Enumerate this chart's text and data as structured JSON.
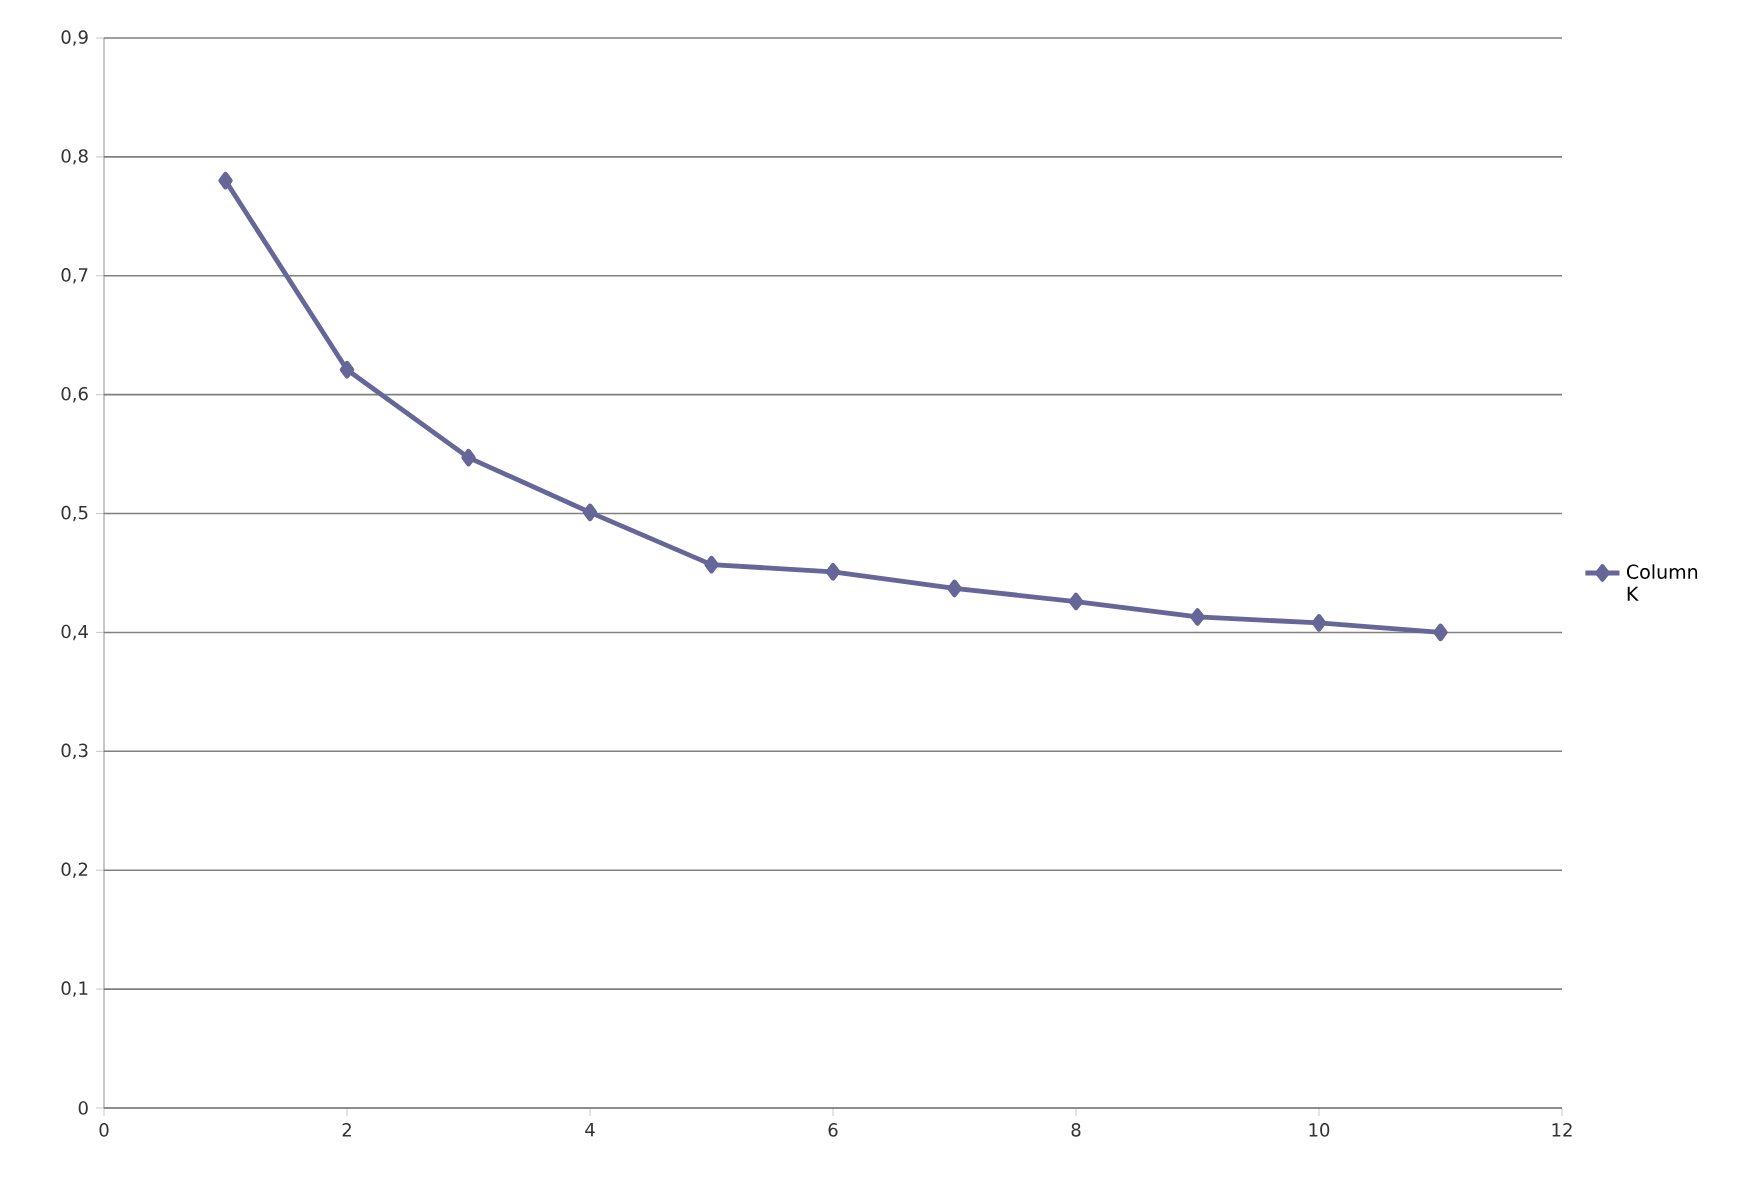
{
  "chart_data": {
    "type": "line",
    "x": [
      1,
      2,
      3,
      4,
      5,
      6,
      7,
      8,
      9,
      10,
      11
    ],
    "series": [
      {
        "name": "Column K",
        "color": "#666699",
        "values": [
          0.78,
          0.621,
          0.547,
          0.501,
          0.457,
          0.451,
          0.437,
          0.426,
          0.413,
          0.408,
          0.4
        ]
      }
    ],
    "xlim": [
      0,
      12
    ],
    "xticks": [
      0,
      2,
      4,
      6,
      8,
      10,
      12
    ],
    "ylim": [
      0,
      0.9
    ],
    "yticks": [
      {
        "value": 0,
        "label": "0"
      },
      {
        "value": 0.1,
        "label": "0,1"
      },
      {
        "value": 0.2,
        "label": "0,2"
      },
      {
        "value": 0.3,
        "label": "0,3"
      },
      {
        "value": 0.4,
        "label": "0,4"
      },
      {
        "value": 0.5,
        "label": "0,5"
      },
      {
        "value": 0.6,
        "label": "0,6"
      },
      {
        "value": 0.7,
        "label": "0,7"
      },
      {
        "value": 0.8,
        "label": "0,8"
      },
      {
        "value": 0.9,
        "label": "0,9"
      }
    ],
    "grid": "y",
    "legend": "right",
    "marker": "diamond",
    "line_style": "solid"
  }
}
